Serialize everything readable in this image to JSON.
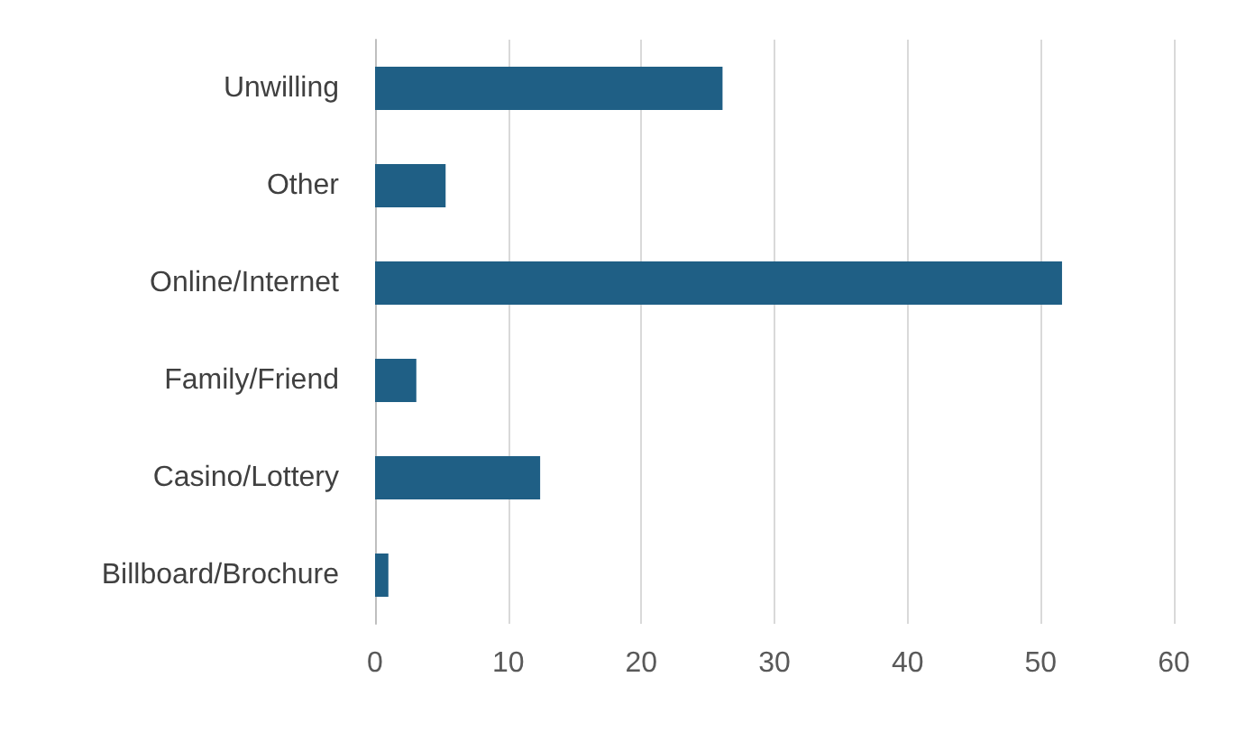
{
  "chart_data": {
    "type": "bar",
    "orientation": "horizontal",
    "categories": [
      "Unwilling",
      "Other",
      "Online/Internet",
      "Family/Friend",
      "Casino/Lottery",
      "Billboard/Brochure"
    ],
    "values": [
      26.1,
      5.3,
      51.6,
      3.1,
      12.4,
      1.0
    ],
    "color": "#1f5f85",
    "xlim": [
      0,
      60
    ],
    "xticks": [
      0,
      10,
      20,
      30,
      40,
      50,
      60
    ],
    "grid": "x"
  }
}
